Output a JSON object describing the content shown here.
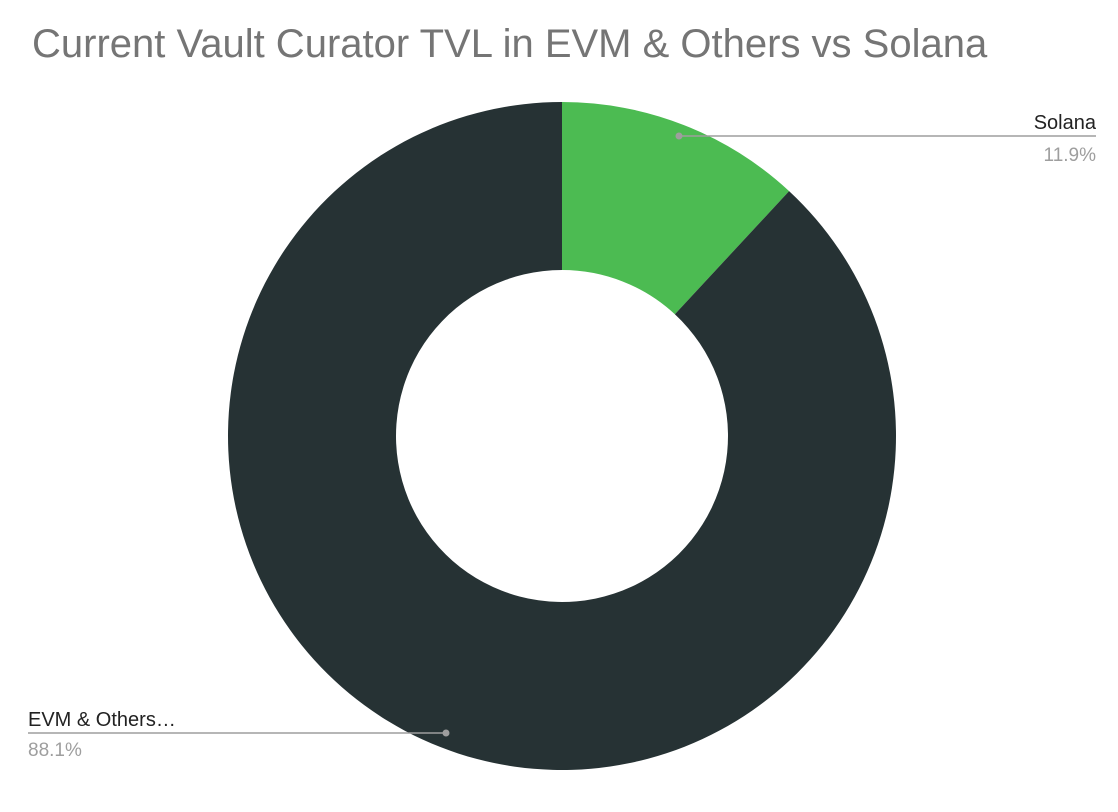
{
  "chart_data": {
    "type": "pie",
    "title": "Current Vault Curator TVL in EVM & Others vs Solana",
    "donut": true,
    "slices": [
      {
        "label": "Solana",
        "value": 11.9,
        "display": "11.9%",
        "color": "#4cbb52",
        "label_side": "right"
      },
      {
        "label": "EVM & Others…",
        "value": 88.1,
        "display": "88.1%",
        "color": "#263234",
        "label_side": "left"
      }
    ]
  }
}
